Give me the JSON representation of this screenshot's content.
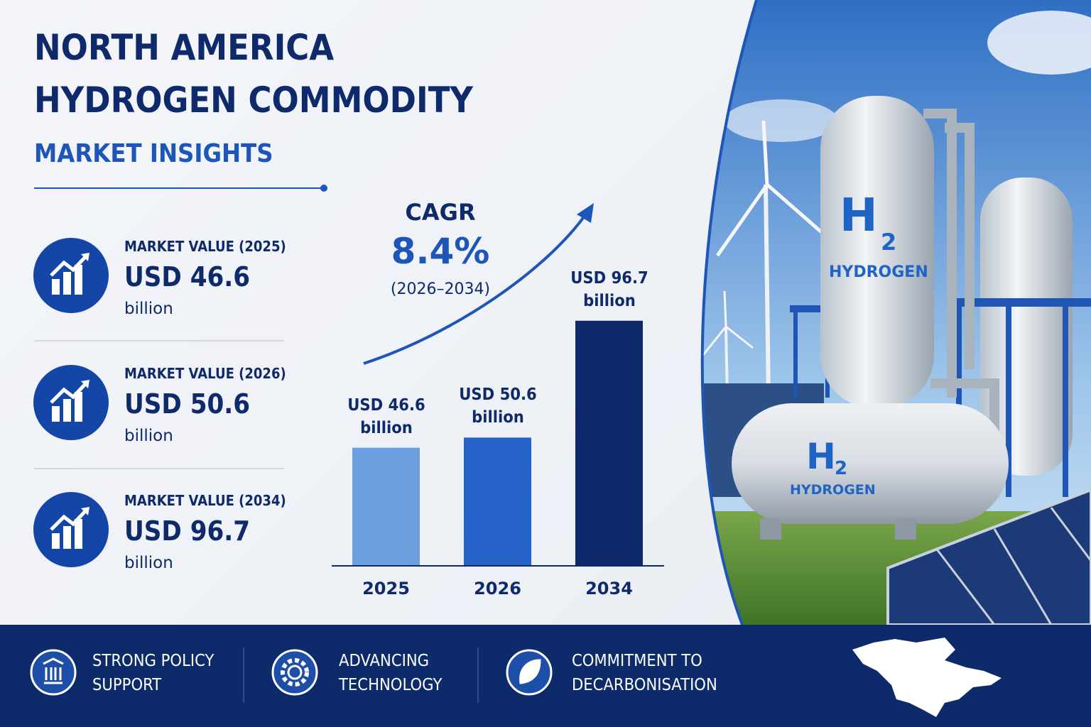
{
  "header": {
    "title": [
      "NORTH AMERICA",
      "HYDROGEN COMMODITY"
    ],
    "subtitle": "MARKET INSIGHTS"
  },
  "stats": [
    {
      "label": "MARKET VALUE (2025)",
      "value": "USD 46.6",
      "unit": "billion"
    },
    {
      "label": "MARKET VALUE (2026)",
      "value": "USD 50.6",
      "unit": "billion"
    },
    {
      "label": "MARKET VALUE (2034)",
      "value": "USD 96.7",
      "unit": "billion"
    }
  ],
  "chart_data": {
    "type": "bar",
    "categories": [
      "2025",
      "2026",
      "2034"
    ],
    "values": [
      46.6,
      50.6,
      96.7
    ],
    "value_labels": [
      "USD 46.6 billion",
      "USD 50.6 billion",
      "USD 96.7 billion"
    ],
    "colors": [
      "#6b9fe0",
      "#2563c9",
      "#0f2a6b"
    ],
    "annotation": {
      "label": "CAGR",
      "value": "8.4%",
      "period": "(2026–2034)"
    }
  },
  "footer": {
    "items": [
      "STRONG POLICY SUPPORT",
      "ADVANCING TECHNOLOGY",
      "COMMITMENT TO DECARBONISATION"
    ]
  },
  "photo": {
    "tanks": [
      {
        "symbol": "H",
        "subscript": "2",
        "label": "HYDROGEN"
      },
      {
        "symbol": "H",
        "subscript": "2",
        "label": "HYDROGEN"
      }
    ]
  }
}
